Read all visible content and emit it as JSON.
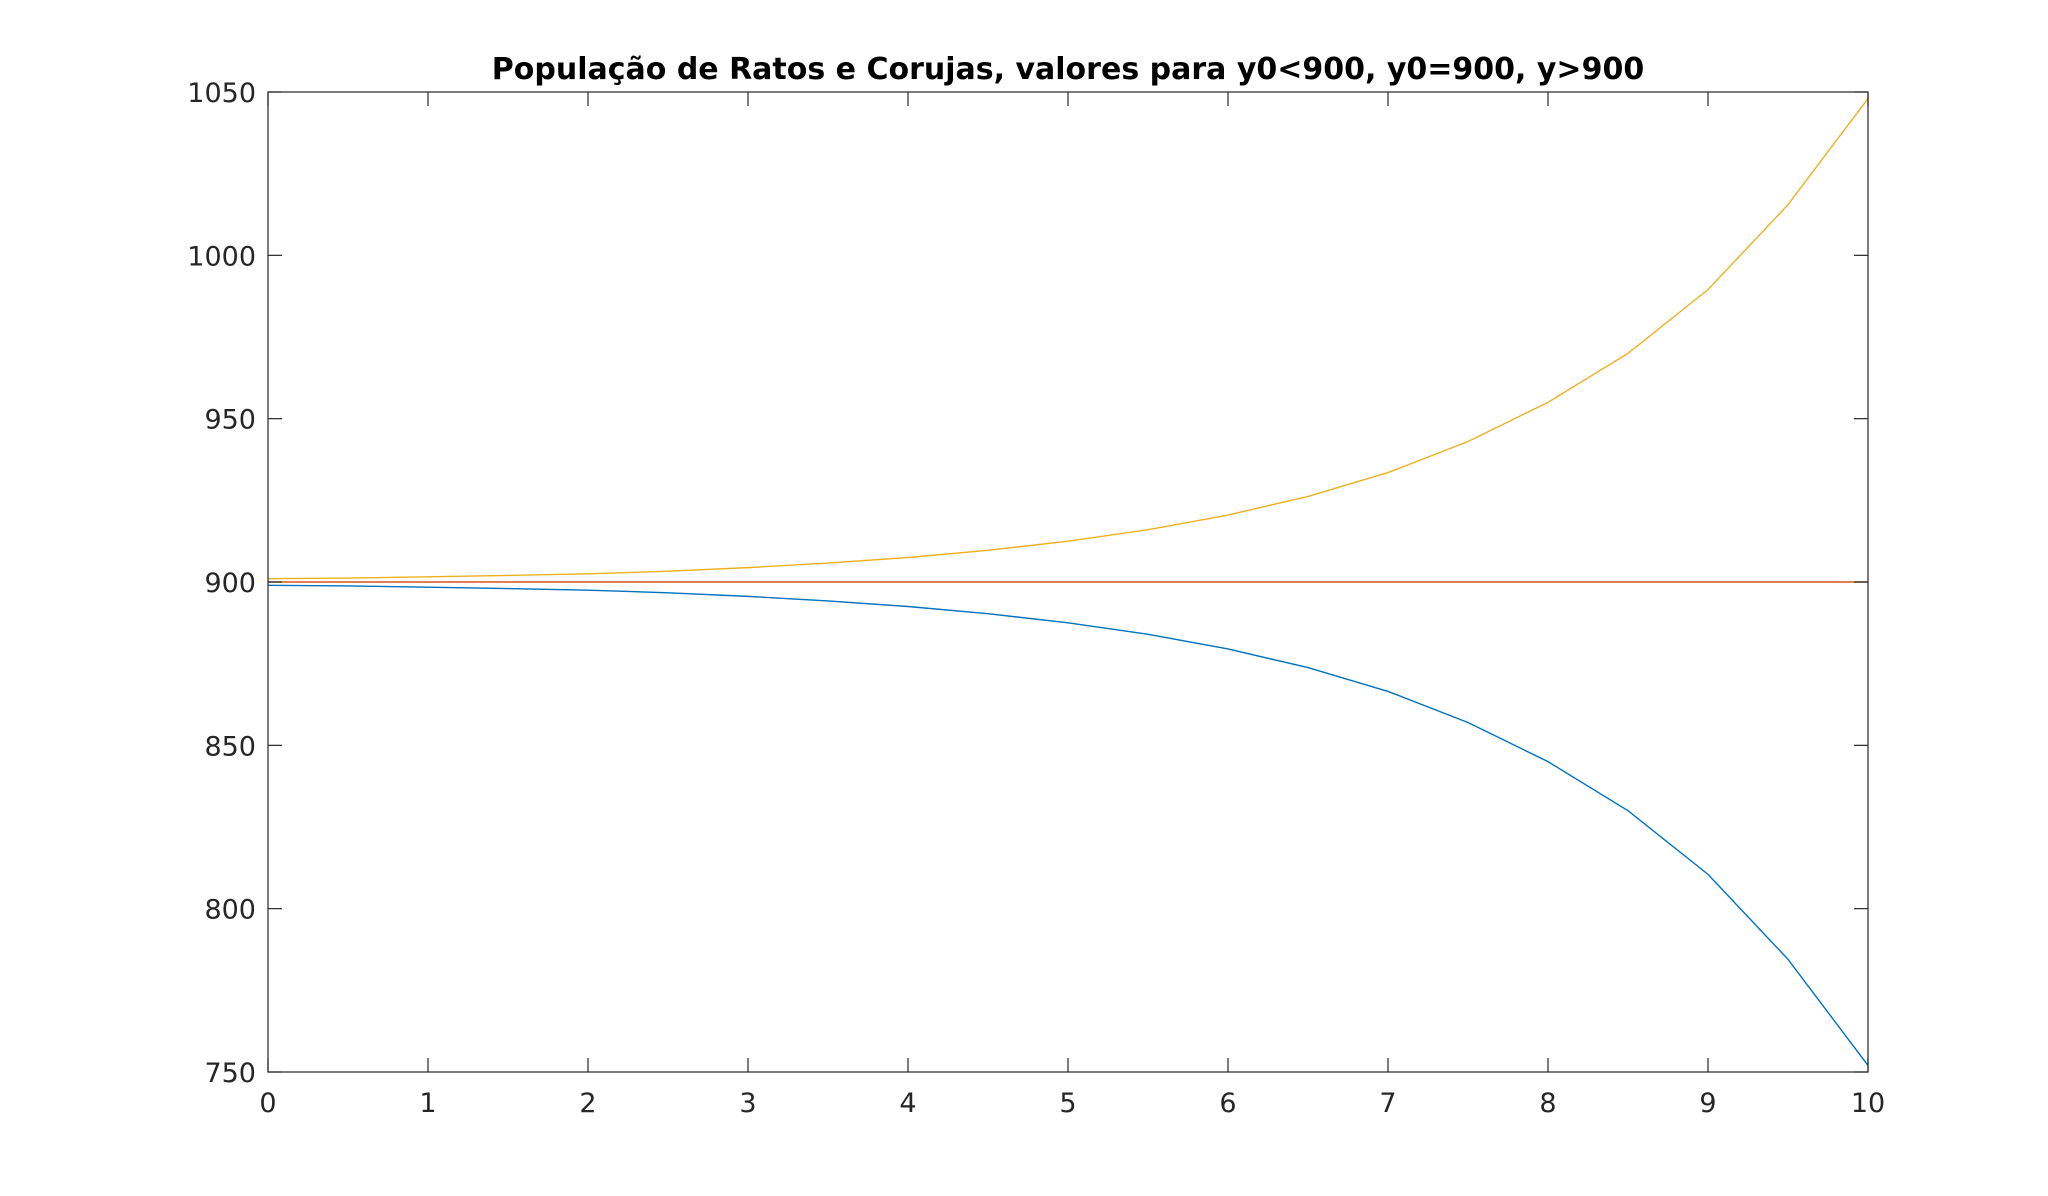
{
  "chart_data": {
    "type": "line",
    "title": "População de Ratos e Corujas, valores para y0<900, y0=900, y>900",
    "xlabel": "",
    "ylabel": "",
    "xlim": [
      0,
      10
    ],
    "ylim": [
      750,
      1050
    ],
    "xticks": [
      0,
      1,
      2,
      3,
      4,
      5,
      6,
      7,
      8,
      9,
      10
    ],
    "yticks": [
      750,
      800,
      850,
      900,
      950,
      1000,
      1050
    ],
    "grid": false,
    "series": [
      {
        "color": "#0072BD",
        "x": [
          0,
          0.5,
          1,
          1.5,
          2,
          2.5,
          3,
          3.5,
          4,
          4.5,
          5,
          5.5,
          6,
          6.5,
          7,
          7.5,
          8,
          8.5,
          9,
          9.5,
          10
        ],
        "y": [
          899,
          898.8,
          898.4,
          898.0,
          897.5,
          896.7,
          895.6,
          894.2,
          892.5,
          890.3,
          887.5,
          884.0,
          879.5,
          873.8,
          866.5,
          857.0,
          845.0,
          830.0,
          810.5,
          784.5,
          752
        ]
      },
      {
        "color": "#D95319",
        "x": [
          0,
          10
        ],
        "y": [
          900,
          900
        ]
      },
      {
        "color": "#EDB120",
        "x": [
          0,
          0.5,
          1,
          1.5,
          2,
          2.5,
          3,
          3.5,
          4,
          4.5,
          5,
          5.5,
          6,
          6.5,
          7,
          7.5,
          8,
          8.5,
          9,
          9.5,
          10
        ],
        "y": [
          901,
          901.2,
          901.6,
          902.0,
          902.5,
          903.3,
          904.4,
          905.8,
          907.5,
          909.7,
          912.5,
          916.0,
          920.5,
          926.2,
          933.5,
          943.0,
          955.0,
          970.0,
          989.5,
          1015.5,
          1048
        ]
      }
    ]
  }
}
